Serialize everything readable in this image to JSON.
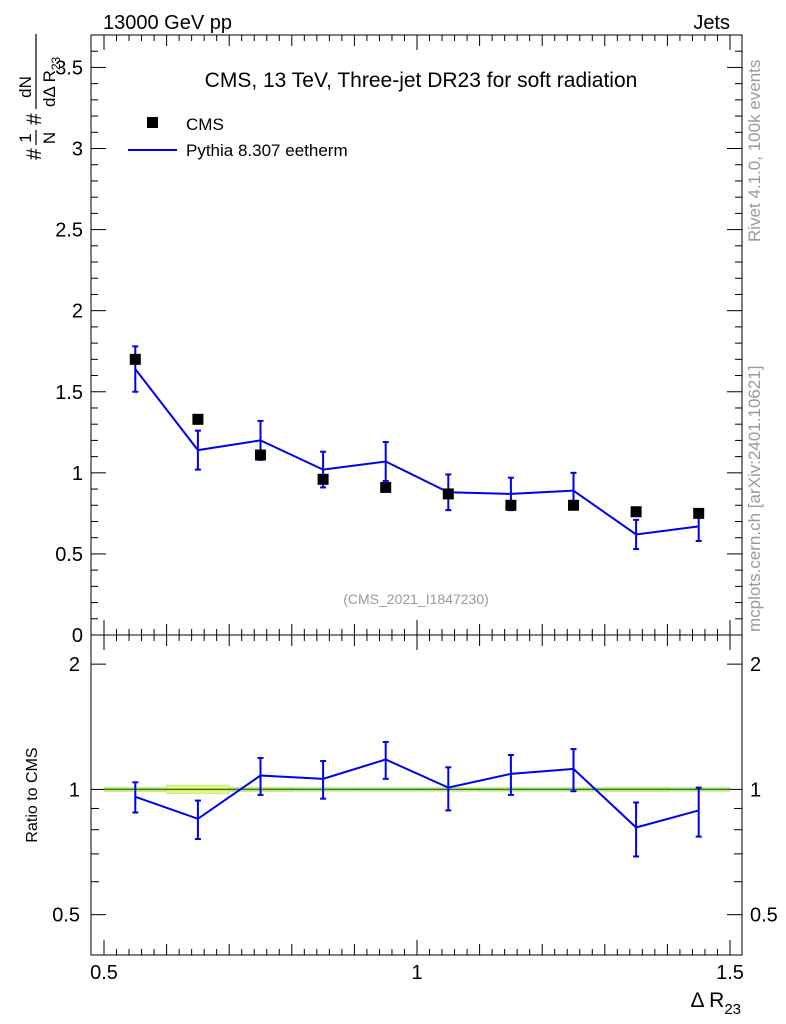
{
  "header": {
    "left": "13000 GeV pp",
    "right": "Jets"
  },
  "side_labels": {
    "rivet": "Rivet 4.1.0,  100k events",
    "mcplots": "mcplots.cern.ch [arXiv:2401.10621]"
  },
  "watermark": "(CMS_2021_I1847230)",
  "chart_data": {
    "type": "scatter",
    "title": "CMS, 13 TeV, Three-jet DR23 for soft radiation",
    "xlabel": "Δ R",
    "xlabel_sub": "23",
    "ylabel_top": {
      "prefix": "#",
      "frac1_num": "1",
      "frac1_den": "N",
      "mid": "#",
      "frac2_num": "dN",
      "frac2_den": "dΔ R",
      "frac2_den_sub": "23"
    },
    "ylabel_bottom": "Ratio to CMS",
    "xlim": [
      0.5,
      1.5
    ],
    "ylim": [
      0,
      3.7
    ],
    "ratio_ylim": [
      0.4,
      2.35
    ],
    "x_ticks": [
      0.5,
      1.0,
      1.5
    ],
    "x_tick_labels": [
      "0.5",
      "1",
      "1.5"
    ],
    "y_ticks": [
      0,
      0.5,
      1.0,
      1.5,
      2.0,
      2.5,
      3.0,
      3.5
    ],
    "y_tick_labels": [
      "0",
      "0.5",
      "1",
      "1.5",
      "2",
      "2.5",
      "3",
      "3.5"
    ],
    "ratio_ticks": [
      0.5,
      1.0,
      2.0
    ],
    "ratio_tick_labels": [
      "0.5",
      "1",
      "2"
    ],
    "legend": {
      "position": "top-left",
      "data_label": "CMS",
      "mc_label": "Pythia 8.307 eetherm"
    },
    "series": [
      {
        "name": "CMS",
        "style": "markers",
        "color": "#000000",
        "x": [
          0.55,
          0.65,
          0.75,
          0.85,
          0.95,
          1.05,
          1.15,
          1.25,
          1.35,
          1.45
        ],
        "values": [
          1.7,
          1.33,
          1.11,
          0.96,
          0.91,
          0.87,
          0.8,
          0.8,
          0.76,
          0.75
        ]
      },
      {
        "name": "Pythia 8.307 eetherm",
        "style": "line",
        "color": "#0000ee",
        "x_edges": [
          0.5,
          0.6,
          0.7,
          0.8,
          0.9,
          1.0,
          1.1,
          1.2,
          1.3,
          1.4,
          1.5
        ],
        "x": [
          0.55,
          0.65,
          0.75,
          0.85,
          0.95,
          1.05,
          1.15,
          1.25,
          1.35,
          1.45
        ],
        "values": [
          1.64,
          1.14,
          1.2,
          1.02,
          1.07,
          0.88,
          0.87,
          0.89,
          0.62,
          0.67
        ],
        "errors": [
          0.14,
          0.12,
          0.12,
          0.11,
          0.12,
          0.11,
          0.1,
          0.11,
          0.09,
          0.09
        ]
      }
    ],
    "ratio": {
      "values": [
        0.96,
        0.85,
        1.08,
        1.06,
        1.18,
        1.01,
        1.09,
        1.12,
        0.81,
        0.89
      ],
      "errors": [
        0.08,
        0.09,
        0.11,
        0.11,
        0.12,
        0.12,
        0.12,
        0.13,
        0.12,
        0.12
      ],
      "band_color": "#eef57a",
      "band_edge_color": "#a6e28a",
      "reference_color": "#2a7a2a",
      "band_half_widths": [
        0.012,
        0.024,
        0.012,
        0.01,
        0.01,
        0.01,
        0.01,
        0.01,
        0.012,
        0.01
      ]
    }
  }
}
